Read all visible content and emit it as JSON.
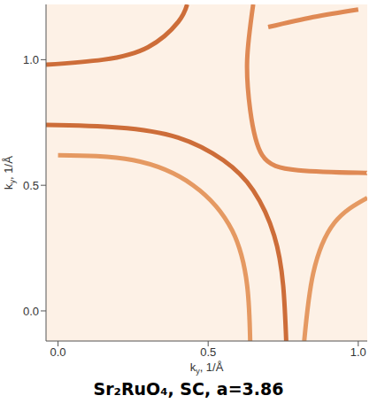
{
  "chart_data": {
    "type": "line",
    "title": "Sr₂RuO₄, SC, a=3.86",
    "x_label": "ky, 1/Å",
    "y_label": "ky, 1/Å",
    "xlim": [
      -0.04,
      1.03
    ],
    "ylim": [
      -0.12,
      1.22
    ],
    "xticks": [
      {
        "value": 0,
        "label": "0.0"
      },
      {
        "value": 0.5,
        "label": "0.5"
      },
      {
        "value": 1,
        "label": "1.0"
      }
    ],
    "yticks": [
      {
        "value": 0,
        "label": "0.0"
      },
      {
        "value": 0.5,
        "label": "0.5"
      },
      {
        "value": 1,
        "label": "1.0"
      }
    ],
    "grid": false,
    "series": [
      {
        "color": "#c4561a",
        "x": [
          -0.04,
          0.2,
          0.4,
          0.55,
          0.65,
          0.72,
          0.75,
          0.76
        ],
        "y": [
          0.74,
          0.73,
          0.69,
          0.6,
          0.48,
          0.3,
          0.1,
          -0.12
        ]
      },
      {
        "color": "#e08a4a",
        "x": [
          0.0,
          0.25,
          0.45,
          0.58,
          0.63,
          0.64
        ],
        "y": [
          0.62,
          0.6,
          0.5,
          0.32,
          0.1,
          -0.12
        ]
      },
      {
        "color": "#c4561a",
        "x": [
          -0.04,
          0.15,
          0.3,
          0.4,
          0.43
        ],
        "y": [
          0.98,
          1.0,
          1.05,
          1.15,
          1.22
        ]
      },
      {
        "color": "#d9773a",
        "x": [
          0.65,
          0.63,
          0.64,
          0.68,
          0.8,
          1.0,
          1.03
        ],
        "y": [
          1.22,
          1.0,
          0.8,
          0.62,
          0.56,
          0.55,
          0.55
        ]
      },
      {
        "color": "#d9773a",
        "x": [
          0.7,
          0.85,
          1.0
        ],
        "y": [
          1.13,
          1.17,
          1.2
        ]
      },
      {
        "color": "#e08a4a",
        "x": [
          0.82,
          0.85,
          0.92,
          1.03
        ],
        "y": [
          -0.12,
          0.15,
          0.35,
          0.45
        ]
      }
    ]
  }
}
